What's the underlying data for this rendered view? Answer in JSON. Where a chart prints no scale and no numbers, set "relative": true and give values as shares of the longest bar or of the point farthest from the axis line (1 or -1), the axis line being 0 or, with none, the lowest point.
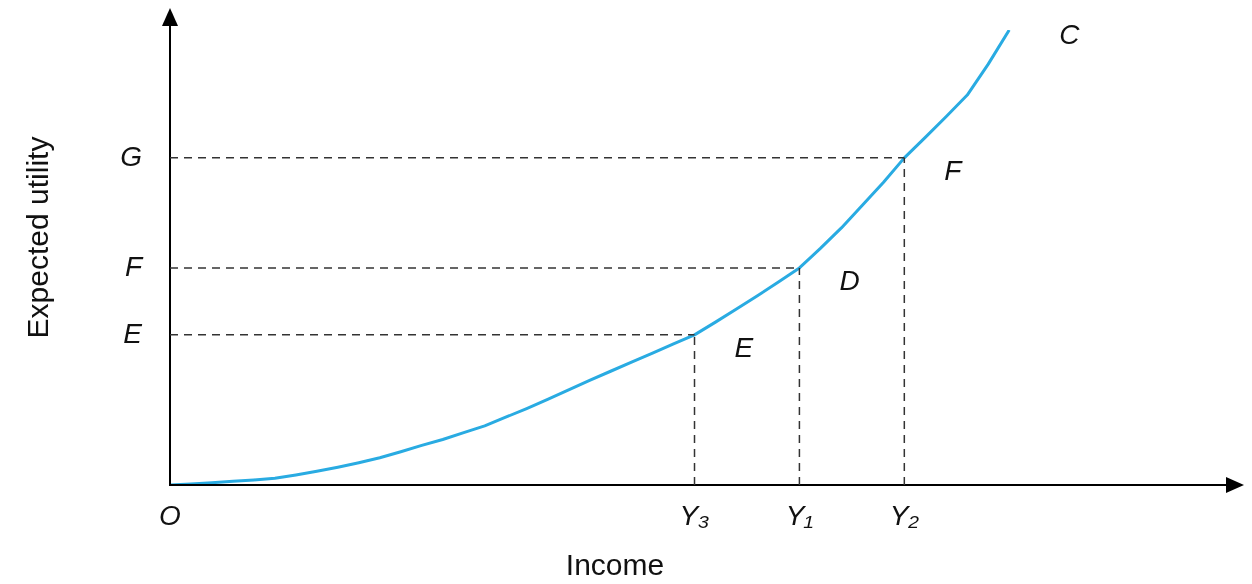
{
  "chart_data": {
    "type": "line",
    "relative": true,
    "xlabel": "Income",
    "ylabel": "Expected utility",
    "legend": false,
    "marker": "none",
    "line_style": "solid",
    "categories": [
      "O",
      null,
      null,
      null,
      null,
      null,
      null,
      null,
      null,
      null,
      null,
      null,
      null,
      null,
      null,
      null,
      null,
      null,
      null,
      null,
      null,
      null,
      null,
      null,
      null,
      "Y₃",
      null,
      null,
      null,
      null,
      "Y₁",
      null,
      null,
      null,
      null,
      "Y₂",
      null,
      null,
      null,
      null,
      null,
      null,
      null,
      null,
      null,
      null,
      null,
      null,
      null,
      null,
      null,
      null
    ],
    "series": [
      {
        "color": "#29abe2",
        "values": [
          0,
          0.002,
          0.005,
          0.008,
          0.011,
          0.015,
          0.022,
          0.03,
          0.039,
          0.049,
          0.06,
          0.073,
          0.087,
          0.1,
          0.115,
          0.13,
          0.149,
          0.168,
          0.188,
          0.209,
          0.23,
          0.25,
          0.27,
          0.29,
          0.31,
          0.33,
          0.358,
          0.387,
          0.416,
          0.446,
          0.477,
          0.52,
          0.565,
          0.615,
          0.665,
          0.719,
          0.764,
          0.81,
          0.857,
          0.925,
          1,
          null,
          null,
          null,
          null,
          null,
          null,
          null,
          null,
          null,
          null,
          null
        ]
      }
    ],
    "ref_lines": [
      {
        "axis": "y",
        "value": 0.33,
        "label": "E",
        "color": "#333333",
        "line_style": "dashed"
      },
      {
        "axis": "y",
        "value": 0.477,
        "label": "F",
        "color": "#333333",
        "line_style": "dashed"
      },
      {
        "axis": "y",
        "value": 0.719,
        "label": "G",
        "color": "#333333",
        "line_style": "dashed"
      },
      {
        "axis": "x",
        "value": "Y₃",
        "color": "#333333",
        "line_style": "dashed"
      },
      {
        "axis": "x",
        "value": "Y₁",
        "color": "#333333",
        "line_style": "dashed"
      },
      {
        "axis": "x",
        "value": "Y₂",
        "color": "#333333",
        "line_style": "dashed"
      }
    ],
    "annotations": [
      {
        "text": "E",
        "x": "Y₃",
        "y": 0.33
      },
      {
        "text": "D",
        "x": "Y₁",
        "y": 0.477
      },
      {
        "text": "F",
        "x": "Y₂",
        "y": 0.719
      },
      "C"
    ]
  }
}
